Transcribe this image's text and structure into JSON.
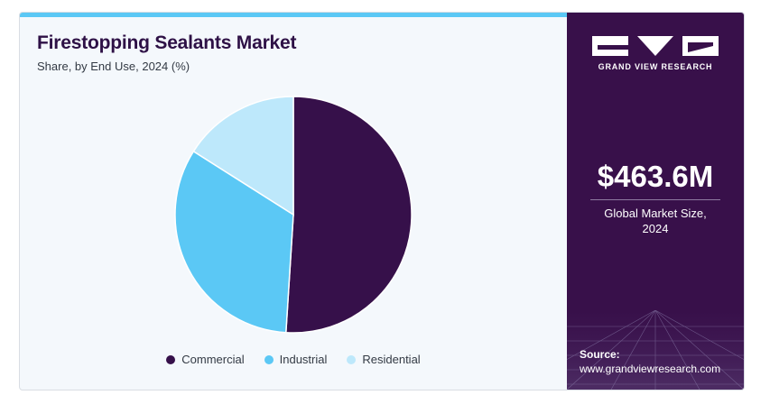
{
  "colors": {
    "commercial": "#36104a",
    "industrial": "#5bc8f5",
    "residential": "#bde8fb",
    "panel": "#38104a",
    "accent": "#5bc8f5"
  },
  "header": {
    "title": "Firestopping Sealants Market",
    "subtitle": "Share, by End Use, 2024 (%)"
  },
  "chart_data": {
    "type": "pie",
    "title": "Firestopping Sealants Market",
    "subtitle": "Share, by End Use, 2024 (%)",
    "categories": [
      "Commercial",
      "Industrial",
      "Residential"
    ],
    "values": [
      51,
      33,
      16
    ],
    "legend_position": "bottom"
  },
  "sidebar": {
    "brand": "GRAND VIEW RESEARCH",
    "market_value": "$463.6M",
    "market_label_line1": "Global Market Size,",
    "market_label_line2": "2024",
    "source_label": "Source:",
    "source_url": "www.grandviewresearch.com"
  },
  "icons": [
    "logo-icon"
  ]
}
